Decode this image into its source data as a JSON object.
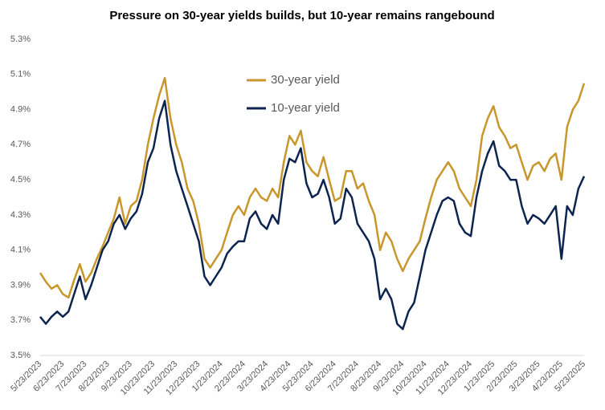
{
  "chart_data": {
    "type": "line",
    "title": "Pressure on 30-year yields builds, but 10-year remains rangebound",
    "categories": [
      "5/23/2023",
      null,
      null,
      null,
      "6/23/2023",
      null,
      null,
      null,
      "7/23/2023",
      null,
      null,
      null,
      "8/23/2023",
      null,
      null,
      null,
      "9/23/2023",
      null,
      null,
      null,
      "10/23/2023",
      null,
      null,
      null,
      "11/23/2023",
      null,
      null,
      null,
      "12/23/2023",
      null,
      null,
      null,
      "1/23/2024",
      null,
      null,
      null,
      "2/23/2024",
      null,
      null,
      null,
      "3/23/2024",
      null,
      null,
      null,
      "4/23/2024",
      null,
      null,
      null,
      "5/23/2024",
      null,
      null,
      null,
      "6/23/2024",
      null,
      null,
      null,
      "7/23/2024",
      null,
      null,
      null,
      "8/23/2024",
      null,
      null,
      null,
      "9/23/2024",
      null,
      null,
      null,
      "10/23/2024",
      null,
      null,
      null,
      "11/23/2024",
      null,
      null,
      null,
      "12/23/2024",
      null,
      null,
      null,
      "1/23/2025",
      null,
      null,
      null,
      "2/23/2025",
      null,
      null,
      null,
      "3/23/2025",
      null,
      null,
      null,
      "4/23/2025",
      null,
      null,
      null,
      "5/23/2025"
    ],
    "series": [
      {
        "name": "30-year yield",
        "color": "#c9962b",
        "values": [
          3.97,
          3.92,
          3.88,
          3.9,
          3.85,
          3.83,
          3.93,
          4.02,
          3.92,
          3.97,
          4.05,
          4.12,
          4.2,
          4.28,
          4.4,
          4.25,
          4.35,
          4.38,
          4.5,
          4.7,
          4.85,
          4.98,
          5.08,
          4.85,
          4.7,
          4.6,
          4.45,
          4.38,
          4.25,
          4.05,
          4.0,
          4.05,
          4.1,
          4.2,
          4.3,
          4.35,
          4.3,
          4.4,
          4.45,
          4.4,
          4.38,
          4.45,
          4.4,
          4.6,
          4.75,
          4.7,
          4.78,
          4.6,
          4.55,
          4.52,
          4.63,
          4.5,
          4.38,
          4.4,
          4.55,
          4.55,
          4.45,
          4.48,
          4.38,
          4.3,
          4.1,
          4.2,
          4.15,
          4.05,
          3.98,
          4.05,
          4.1,
          4.15,
          4.28,
          4.4,
          4.5,
          4.55,
          4.6,
          4.55,
          4.45,
          4.4,
          4.35,
          4.5,
          4.75,
          4.85,
          4.92,
          4.8,
          4.75,
          4.68,
          4.7,
          4.6,
          4.5,
          4.58,
          4.6,
          4.55,
          4.62,
          4.65,
          4.5,
          4.8,
          4.9,
          4.95,
          5.05
        ]
      },
      {
        "name": "10-year yield",
        "color": "#0d2451",
        "values": [
          3.72,
          3.68,
          3.72,
          3.75,
          3.72,
          3.75,
          3.85,
          3.95,
          3.82,
          3.9,
          4.0,
          4.1,
          4.15,
          4.25,
          4.3,
          4.22,
          4.28,
          4.32,
          4.42,
          4.6,
          4.68,
          4.85,
          4.95,
          4.7,
          4.55,
          4.45,
          4.35,
          4.25,
          4.15,
          3.95,
          3.9,
          3.95,
          4.0,
          4.08,
          4.12,
          4.15,
          4.15,
          4.28,
          4.32,
          4.25,
          4.22,
          4.3,
          4.25,
          4.5,
          4.62,
          4.6,
          4.68,
          4.48,
          4.4,
          4.42,
          4.5,
          4.4,
          4.25,
          4.28,
          4.45,
          4.4,
          4.25,
          4.2,
          4.15,
          4.05,
          3.82,
          3.88,
          3.82,
          3.68,
          3.65,
          3.75,
          3.8,
          3.95,
          4.1,
          4.2,
          4.3,
          4.38,
          4.4,
          4.38,
          4.25,
          4.2,
          4.18,
          4.4,
          4.55,
          4.65,
          4.72,
          4.58,
          4.55,
          4.5,
          4.5,
          4.35,
          4.25,
          4.3,
          4.28,
          4.25,
          4.3,
          4.35,
          4.05,
          4.35,
          4.3,
          4.45,
          4.52
        ]
      }
    ],
    "ylim": [
      3.5,
      5.3
    ],
    "yticks": [
      {
        "value": 3.5,
        "label": "3.5%"
      },
      {
        "value": 3.7,
        "label": "3.7%"
      },
      {
        "value": 3.9,
        "label": "3.9%"
      },
      {
        "value": 4.1,
        "label": "4.1%"
      },
      {
        "value": 4.3,
        "label": "4.3%"
      },
      {
        "value": 4.5,
        "label": "4.5%"
      },
      {
        "value": 4.7,
        "label": "4.7%"
      },
      {
        "value": 4.9,
        "label": "4.9%"
      },
      {
        "value": 5.1,
        "label": "5.1%"
      },
      {
        "value": 5.3,
        "label": "5.3%"
      }
    ],
    "grid": false,
    "legend": "upper center"
  }
}
